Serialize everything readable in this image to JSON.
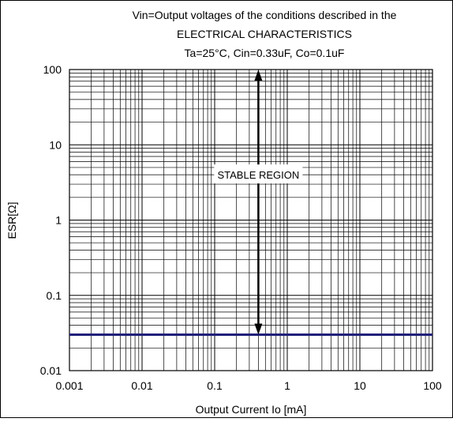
{
  "chart_data": {
    "type": "line",
    "title_lines": [
      "Vin=Output voltages of the conditions described in the",
      "ELECTRICAL CHARACTERISTICS",
      "Ta=25°C, Cin=0.33uF, Co=0.1uF"
    ],
    "xlabel": "Output Current Io [mA]",
    "ylabel": "ESR[Ω]",
    "x_scale": "log",
    "y_scale": "log",
    "xlim": [
      0.001,
      100
    ],
    "ylim": [
      0.01,
      100
    ],
    "x_ticks": [
      0.001,
      0.01,
      0.1,
      1,
      10,
      100
    ],
    "x_tick_labels": [
      "0.001",
      "0.01",
      "0.1",
      "1",
      "10",
      "100"
    ],
    "y_ticks": [
      0.01,
      0.1,
      1,
      10,
      100
    ],
    "y_tick_labels": [
      "0.01",
      "0.1",
      "1",
      "10",
      "100"
    ],
    "grid": true,
    "series": [
      {
        "x": [
          0.001,
          100
        ],
        "y": [
          0.03,
          0.03
        ],
        "color": "#1f1f7a"
      }
    ],
    "annotation": {
      "text": "STABLE REGION",
      "arrow_x": 0.4,
      "arrow_y_range": [
        0.03,
        100
      ],
      "label_y": 4
    }
  }
}
